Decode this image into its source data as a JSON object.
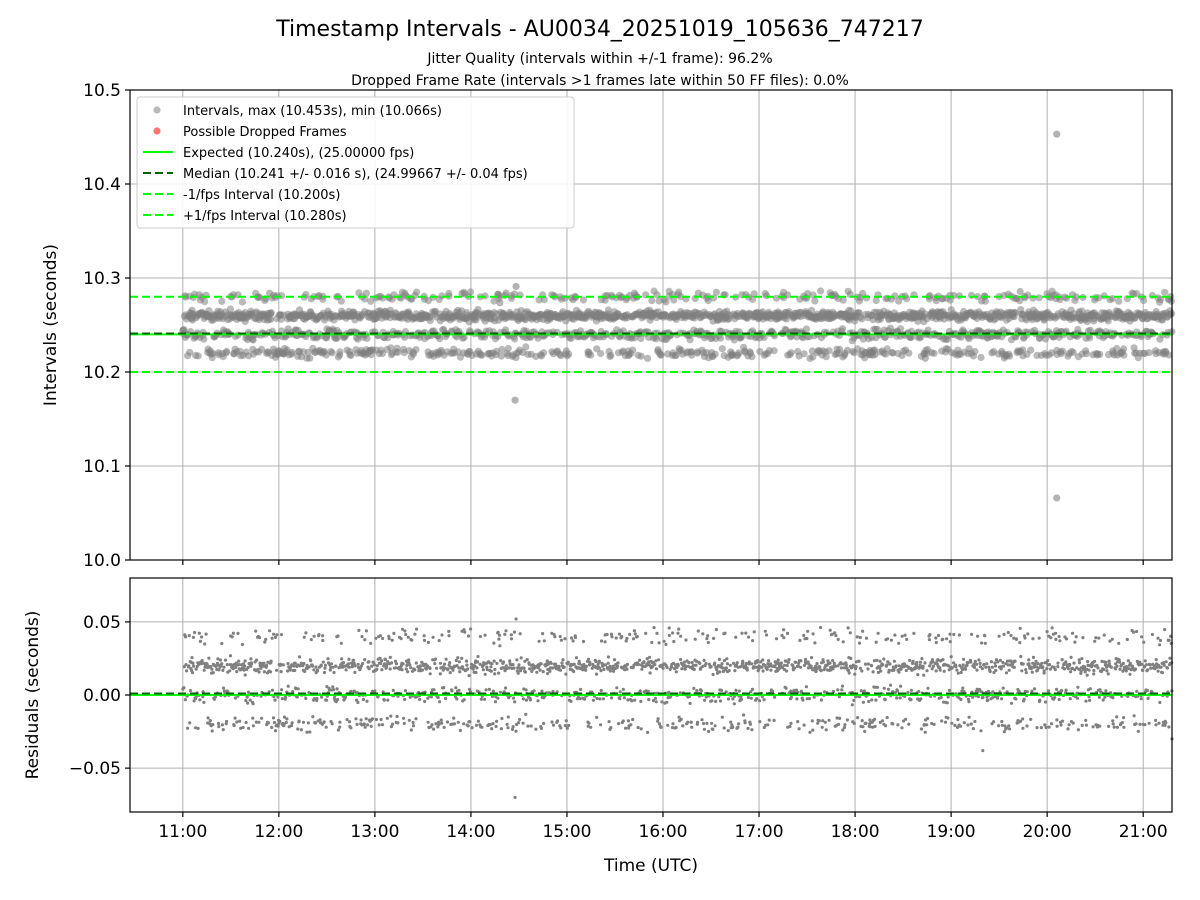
{
  "chart_data": [
    {
      "type": "scatter",
      "title": "Timestamp Intervals - AU0034_20251019_105636_747217",
      "subtitle_1": "Jitter Quality (intervals within +/-1 frame): 96.2%",
      "subtitle_2": "Dropped Frame Rate (intervals >1 frames late within 50 FF files): 0.0%",
      "xlabel": "",
      "ylabel": "Intervals (seconds)",
      "ylim": [
        10.0,
        10.5
      ],
      "y_ticks": [
        "10.0",
        "10.1",
        "10.2",
        "10.3",
        "10.4",
        "10.5"
      ],
      "y_tick_values": [
        10.0,
        10.1,
        10.2,
        10.3,
        10.4,
        10.5
      ],
      "xlim_hours": [
        10.45,
        21.3
      ],
      "grid": true,
      "legend_position": "top-left",
      "legend": [
        {
          "label": "Intervals, max (10.453s), min (10.066s)",
          "kind": "marker",
          "color": "#808080"
        },
        {
          "label": "Possible Dropped Frames",
          "kind": "marker",
          "color": "#ff0000"
        },
        {
          "label": "Expected (10.240s), (25.00000 fps)",
          "kind": "solid",
          "color": "#00ff00"
        },
        {
          "label": "Median (10.241 +/- 0.016 s), (24.99667 +/- 0.04 fps)",
          "kind": "dashed",
          "color": "#006400"
        },
        {
          "label": "-1/fps Interval (10.200s)",
          "kind": "dashed",
          "color": "#00ff00"
        },
        {
          "label": "+1/fps Interval (10.280s)",
          "kind": "dashed",
          "color": "#00ff00"
        }
      ],
      "lines": {
        "expected": 10.24,
        "median": 10.241,
        "minus_one": 10.2,
        "plus_one": 10.28
      },
      "series": [
        {
          "name": "Intervals",
          "bands": [
            10.22,
            10.24,
            10.26,
            10.28
          ],
          "band_weights": [
            0.17,
            0.25,
            0.48,
            0.1
          ],
          "t_start": 11.0,
          "t_end": 21.3,
          "count": 2450
        },
        {
          "name": "Outliers",
          "points": [
            [
              14.47,
              10.291
            ],
            [
              14.46,
              10.17
            ],
            [
              20.1,
              10.453
            ],
            [
              20.1,
              10.066
            ]
          ]
        }
      ]
    },
    {
      "type": "scatter",
      "title": "",
      "xlabel": "Time (UTC)",
      "ylabel": "Residuals (seconds)",
      "ylim": [
        -0.08,
        0.08
      ],
      "y_ticks": [
        "−0.05",
        "0.00",
        "0.05"
      ],
      "y_tick_values": [
        -0.05,
        0.0,
        0.05
      ],
      "xlim_hours": [
        10.45,
        21.3
      ],
      "x_ticks": [
        "11:00",
        "12:00",
        "13:00",
        "14:00",
        "15:00",
        "16:00",
        "17:00",
        "18:00",
        "19:00",
        "20:00",
        "21:00"
      ],
      "x_tick_values": [
        11,
        12,
        13,
        14,
        15,
        16,
        17,
        18,
        19,
        20,
        21
      ],
      "grid": true,
      "lines": {
        "zero": 0.0,
        "median": 0.001
      },
      "series": [
        {
          "name": "Residuals",
          "bands": [
            -0.02,
            0.0,
            0.02,
            0.04
          ],
          "band_weights": [
            0.17,
            0.25,
            0.48,
            0.1
          ],
          "t_start": 11.0,
          "t_end": 21.3,
          "count": 2450
        },
        {
          "name": "Outliers",
          "points": [
            [
              14.47,
              0.052
            ],
            [
              14.46,
              -0.07
            ],
            [
              19.33,
              -0.038
            ],
            [
              21.3,
              -0.03
            ]
          ]
        }
      ]
    }
  ]
}
